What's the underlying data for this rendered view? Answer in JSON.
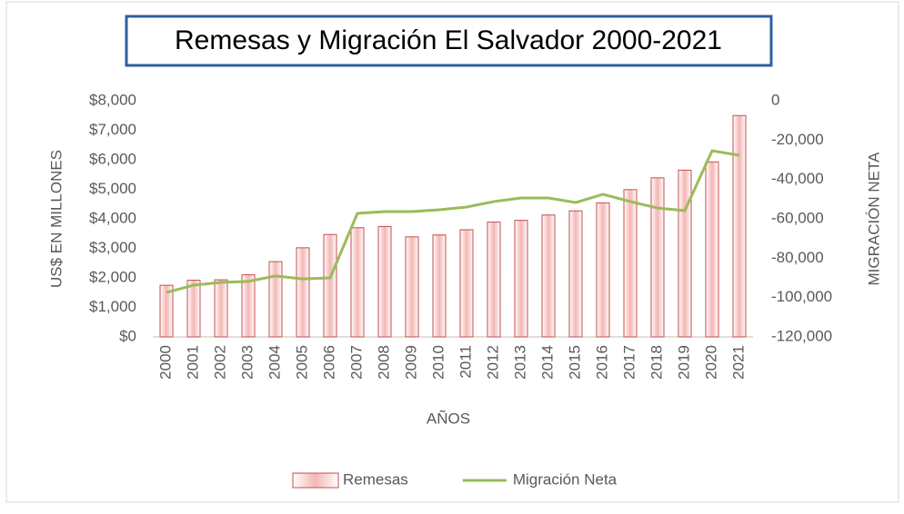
{
  "chart_data": {
    "type": "bar",
    "title": "Remesas y Migración El Salvador 2000-2021",
    "x_label": "AÑOS",
    "y_label": "US$ EN MILLONES",
    "y2_label": "MIGRACIÓN NETA",
    "categories": [
      "2000",
      "2001",
      "2002",
      "2003",
      "2004",
      "2005",
      "2006",
      "2007",
      "2008",
      "2009",
      "2010",
      "2011",
      "2012",
      "2013",
      "2014",
      "2015",
      "2016",
      "2017",
      "2018",
      "2019",
      "2020",
      "2021"
    ],
    "series": [
      {
        "name": "Remesas",
        "type": "bar",
        "color": "#c0504d",
        "values": [
          1750,
          1920,
          1935,
          2105,
          2550,
          3020,
          3470,
          3700,
          3740,
          3390,
          3455,
          3630,
          3890,
          3950,
          4130,
          4270,
          4540,
          4990,
          5390,
          5650,
          5930,
          7500
        ]
      },
      {
        "name": "Migración Neta",
        "type": "line",
        "axis": "y2",
        "color": "#9bbb59",
        "values": [
          -97400,
          -93700,
          -92300,
          -91800,
          -89000,
          -90500,
          -90000,
          -57200,
          -56300,
          -56300,
          -55400,
          -54000,
          -51200,
          -49400,
          -49400,
          -51700,
          -47500,
          -51200,
          -54500,
          -55800,
          -25400,
          -27700
        ]
      }
    ],
    "ylim": [
      0,
      8000
    ],
    "yticks": [
      {
        "value": 0,
        "label": "$0"
      },
      {
        "value": 1000,
        "label": "$1,000"
      },
      {
        "value": 2000,
        "label": "$2,000"
      },
      {
        "value": 3000,
        "label": "$3,000"
      },
      {
        "value": 4000,
        "label": "$4,000"
      },
      {
        "value": 5000,
        "label": "$5,000"
      },
      {
        "value": 6000,
        "label": "$6,000"
      },
      {
        "value": 7000,
        "label": "$7,000"
      },
      {
        "value": 8000,
        "label": "$8,000"
      }
    ],
    "y2lim": [
      -120000,
      0
    ],
    "y2ticks": [
      {
        "value": -120000,
        "label": "-120,000"
      },
      {
        "value": -100000,
        "label": "-100,000"
      },
      {
        "value": -80000,
        "label": "-80,000"
      },
      {
        "value": -60000,
        "label": "-60,000"
      },
      {
        "value": -40000,
        "label": "-40,000"
      },
      {
        "value": -20000,
        "label": "-20,000"
      },
      0
    ],
    "grid": false,
    "legend": "bottom"
  }
}
